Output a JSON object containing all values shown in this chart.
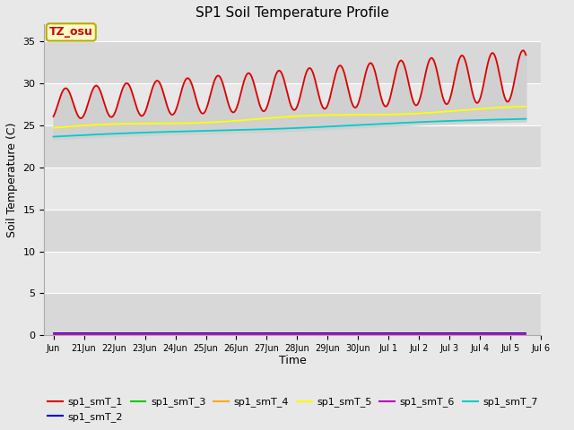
{
  "title": "SP1 Soil Temperature Profile",
  "xlabel": "Time",
  "ylabel": "Soil Temperature (C)",
  "annotation_text": "TZ_osu",
  "annotation_bg": "#ffffcc",
  "annotation_border": "#bbaa00",
  "annotation_fg": "#cc0000",
  "ylim": [
    0,
    37
  ],
  "yticks": [
    0,
    5,
    10,
    15,
    20,
    25,
    30,
    35
  ],
  "series_colors": [
    "#dd0000",
    "#0000cc",
    "#00cc00",
    "#ffaa00",
    "#ffff00",
    "#bb00bb",
    "#00cccc"
  ],
  "series_labels": [
    "sp1_smT_1",
    "sp1_smT_2",
    "sp1_smT_3",
    "sp1_smT_4",
    "sp1_smT_5",
    "sp1_smT_6",
    "sp1_smT_7"
  ],
  "num_points": 375,
  "fig_bg": "#e8e8e8",
  "band_colors": [
    "#d8d8d8",
    "#e8e8e8"
  ],
  "shade_color": "#d0d0d0"
}
